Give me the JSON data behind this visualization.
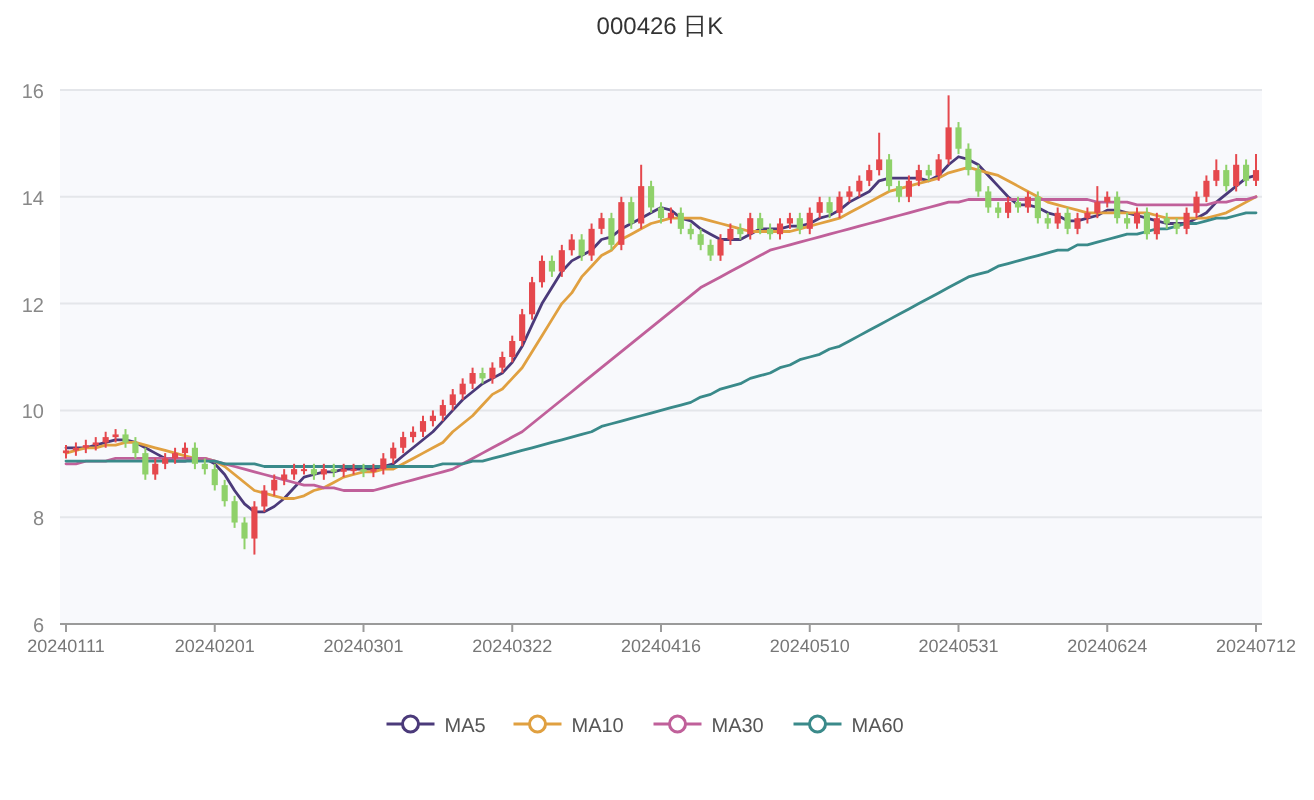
{
  "chart_data": {
    "type": "candlestick",
    "title": "000426 日K",
    "categories": [
      "20240111",
      null,
      null,
      null,
      null,
      null,
      null,
      null,
      null,
      null,
      null,
      null,
      null,
      null,
      null,
      "20240201",
      null,
      null,
      null,
      null,
      null,
      null,
      null,
      null,
      null,
      null,
      null,
      null,
      null,
      null,
      "20240301",
      null,
      null,
      null,
      null,
      null,
      null,
      null,
      null,
      null,
      null,
      null,
      null,
      null,
      null,
      "20240322",
      null,
      null,
      null,
      null,
      null,
      null,
      null,
      null,
      null,
      null,
      null,
      null,
      null,
      null,
      "20240416",
      null,
      null,
      null,
      null,
      null,
      null,
      null,
      null,
      null,
      null,
      null,
      null,
      null,
      null,
      "20240510",
      null,
      null,
      null,
      null,
      null,
      null,
      null,
      null,
      null,
      null,
      null,
      null,
      null,
      null,
      "20240531",
      null,
      null,
      null,
      null,
      null,
      null,
      null,
      null,
      null,
      null,
      null,
      null,
      null,
      null,
      "20240624",
      null,
      null,
      null,
      null,
      null,
      null,
      null,
      null,
      null,
      null,
      null,
      null,
      null,
      null,
      "20240712"
    ],
    "ohlc": [
      [
        9.2,
        9.35,
        9.1,
        9.25
      ],
      [
        9.25,
        9.4,
        9.15,
        9.3
      ],
      [
        9.3,
        9.45,
        9.2,
        9.35
      ],
      [
        9.35,
        9.5,
        9.25,
        9.4
      ],
      [
        9.4,
        9.6,
        9.3,
        9.5
      ],
      [
        9.5,
        9.65,
        9.4,
        9.55
      ],
      [
        9.55,
        9.65,
        9.3,
        9.4
      ],
      [
        9.4,
        9.5,
        9.1,
        9.2
      ],
      [
        9.2,
        9.3,
        8.7,
        8.8
      ],
      [
        8.8,
        9.1,
        8.7,
        9.0
      ],
      [
        9.0,
        9.2,
        8.9,
        9.1
      ],
      [
        9.1,
        9.3,
        9.0,
        9.2
      ],
      [
        9.2,
        9.4,
        9.1,
        9.3
      ],
      [
        9.3,
        9.4,
        8.9,
        9.0
      ],
      [
        9.0,
        9.1,
        8.8,
        8.9
      ],
      [
        8.9,
        9.0,
        8.5,
        8.6
      ],
      [
        8.6,
        8.7,
        8.2,
        8.3
      ],
      [
        8.3,
        8.4,
        7.8,
        7.9
      ],
      [
        7.9,
        8.0,
        7.4,
        7.6
      ],
      [
        7.6,
        8.3,
        7.3,
        8.2
      ],
      [
        8.2,
        8.6,
        8.1,
        8.5
      ],
      [
        8.5,
        8.8,
        8.4,
        8.7
      ],
      [
        8.7,
        8.9,
        8.6,
        8.8
      ],
      [
        8.8,
        9.0,
        8.7,
        8.9
      ],
      [
        8.9,
        9.0,
        8.8,
        8.9
      ],
      [
        8.9,
        9.0,
        8.7,
        8.8
      ],
      [
        8.8,
        9.0,
        8.7,
        8.9
      ],
      [
        8.9,
        9.0,
        8.75,
        8.85
      ],
      [
        8.85,
        9.0,
        8.75,
        8.9
      ],
      [
        8.9,
        9.0,
        8.8,
        8.9
      ],
      [
        8.9,
        9.0,
        8.75,
        8.85
      ],
      [
        8.85,
        9.0,
        8.75,
        8.9
      ],
      [
        8.9,
        9.2,
        8.8,
        9.1
      ],
      [
        9.1,
        9.4,
        9.0,
        9.3
      ],
      [
        9.3,
        9.6,
        9.2,
        9.5
      ],
      [
        9.5,
        9.7,
        9.4,
        9.6
      ],
      [
        9.6,
        9.9,
        9.5,
        9.8
      ],
      [
        9.8,
        10.0,
        9.7,
        9.9
      ],
      [
        9.9,
        10.2,
        9.8,
        10.1
      ],
      [
        10.1,
        10.4,
        10.0,
        10.3
      ],
      [
        10.3,
        10.6,
        10.2,
        10.5
      ],
      [
        10.5,
        10.8,
        10.4,
        10.7
      ],
      [
        10.7,
        10.8,
        10.5,
        10.6
      ],
      [
        10.6,
        10.9,
        10.5,
        10.8
      ],
      [
        10.8,
        11.1,
        10.7,
        11.0
      ],
      [
        11.0,
        11.4,
        10.9,
        11.3
      ],
      [
        11.3,
        11.9,
        11.2,
        11.8
      ],
      [
        11.8,
        12.5,
        11.7,
        12.4
      ],
      [
        12.4,
        12.9,
        12.3,
        12.8
      ],
      [
        12.8,
        12.9,
        12.5,
        12.6
      ],
      [
        12.6,
        13.1,
        12.5,
        13.0
      ],
      [
        13.0,
        13.3,
        12.9,
        13.2
      ],
      [
        13.2,
        13.3,
        12.8,
        12.9
      ],
      [
        12.9,
        13.5,
        12.8,
        13.4
      ],
      [
        13.4,
        13.7,
        13.3,
        13.6
      ],
      [
        13.6,
        13.7,
        13.0,
        13.1
      ],
      [
        13.1,
        14.0,
        13.0,
        13.9
      ],
      [
        13.9,
        14.0,
        13.4,
        13.5
      ],
      [
        13.5,
        14.6,
        13.4,
        14.2
      ],
      [
        14.2,
        14.3,
        13.7,
        13.8
      ],
      [
        13.8,
        13.9,
        13.5,
        13.6
      ],
      [
        13.6,
        13.8,
        13.5,
        13.7
      ],
      [
        13.7,
        13.8,
        13.3,
        13.4
      ],
      [
        13.4,
        13.5,
        13.2,
        13.3
      ],
      [
        13.3,
        13.4,
        13.0,
        13.1
      ],
      [
        13.1,
        13.2,
        12.8,
        12.9
      ],
      [
        12.9,
        13.3,
        12.8,
        13.2
      ],
      [
        13.2,
        13.5,
        13.1,
        13.4
      ],
      [
        13.4,
        13.5,
        13.2,
        13.3
      ],
      [
        13.3,
        13.7,
        13.2,
        13.6
      ],
      [
        13.6,
        13.7,
        13.3,
        13.4
      ],
      [
        13.4,
        13.5,
        13.2,
        13.3
      ],
      [
        13.3,
        13.6,
        13.2,
        13.5
      ],
      [
        13.5,
        13.7,
        13.4,
        13.6
      ],
      [
        13.6,
        13.7,
        13.3,
        13.4
      ],
      [
        13.4,
        13.8,
        13.3,
        13.7
      ],
      [
        13.7,
        14.0,
        13.6,
        13.9
      ],
      [
        13.9,
        14.0,
        13.6,
        13.7
      ],
      [
        13.7,
        14.1,
        13.6,
        14.0
      ],
      [
        14.0,
        14.2,
        13.9,
        14.1
      ],
      [
        14.1,
        14.4,
        14.0,
        14.3
      ],
      [
        14.3,
        14.6,
        14.2,
        14.5
      ],
      [
        14.5,
        15.2,
        14.4,
        14.7
      ],
      [
        14.7,
        14.8,
        14.1,
        14.2
      ],
      [
        14.2,
        14.3,
        13.9,
        14.0
      ],
      [
        14.0,
        14.4,
        13.9,
        14.3
      ],
      [
        14.3,
        14.6,
        14.2,
        14.5
      ],
      [
        14.5,
        14.6,
        14.3,
        14.4
      ],
      [
        14.4,
        14.8,
        14.3,
        14.7
      ],
      [
        14.7,
        15.9,
        14.6,
        15.3
      ],
      [
        15.3,
        15.4,
        14.8,
        14.9
      ],
      [
        14.9,
        15.0,
        14.4,
        14.5
      ],
      [
        14.5,
        14.6,
        14.0,
        14.1
      ],
      [
        14.1,
        14.2,
        13.7,
        13.8
      ],
      [
        13.8,
        13.9,
        13.6,
        13.7
      ],
      [
        13.7,
        14.0,
        13.6,
        13.9
      ],
      [
        13.9,
        14.0,
        13.7,
        13.8
      ],
      [
        13.8,
        14.1,
        13.7,
        14.0
      ],
      [
        14.0,
        14.1,
        13.5,
        13.6
      ],
      [
        13.6,
        13.7,
        13.4,
        13.5
      ],
      [
        13.5,
        13.8,
        13.4,
        13.7
      ],
      [
        13.7,
        13.8,
        13.3,
        13.4
      ],
      [
        13.4,
        13.7,
        13.3,
        13.6
      ],
      [
        13.6,
        13.8,
        13.5,
        13.7
      ],
      [
        13.7,
        14.2,
        13.6,
        13.9
      ],
      [
        13.9,
        14.1,
        13.8,
        14.0
      ],
      [
        14.0,
        14.1,
        13.5,
        13.6
      ],
      [
        13.6,
        13.7,
        13.4,
        13.5
      ],
      [
        13.5,
        13.8,
        13.4,
        13.7
      ],
      [
        13.7,
        13.8,
        13.2,
        13.3
      ],
      [
        13.3,
        13.7,
        13.2,
        13.6
      ],
      [
        13.6,
        13.7,
        13.4,
        13.5
      ],
      [
        13.5,
        13.6,
        13.3,
        13.4
      ],
      [
        13.4,
        13.8,
        13.3,
        13.7
      ],
      [
        13.7,
        14.1,
        13.6,
        14.0
      ],
      [
        14.0,
        14.4,
        13.9,
        14.3
      ],
      [
        14.3,
        14.7,
        14.2,
        14.5
      ],
      [
        14.5,
        14.6,
        14.1,
        14.2
      ],
      [
        14.2,
        14.8,
        14.1,
        14.6
      ],
      [
        14.6,
        14.7,
        14.2,
        14.3
      ],
      [
        14.3,
        14.8,
        14.2,
        14.5
      ]
    ],
    "colors": [
      "#e5484d",
      "#e5484d",
      "#e5484d",
      "#e5484d",
      "#e5484d",
      "#e5484d",
      "#8fd16a",
      "#8fd16a",
      "#8fd16a",
      "#e5484d",
      "#e5484d",
      "#e5484d",
      "#e5484d",
      "#8fd16a",
      "#8fd16a",
      "#8fd16a",
      "#8fd16a",
      "#8fd16a",
      "#8fd16a",
      "#e5484d",
      "#e5484d",
      "#e5484d",
      "#e5484d",
      "#e5484d",
      "#e5484d",
      "#8fd16a",
      "#e5484d",
      "#8fd16a",
      "#e5484d",
      "#e5484d",
      "#8fd16a",
      "#e5484d",
      "#e5484d",
      "#e5484d",
      "#e5484d",
      "#e5484d",
      "#e5484d",
      "#e5484d",
      "#e5484d",
      "#e5484d",
      "#e5484d",
      "#e5484d",
      "#8fd16a",
      "#e5484d",
      "#e5484d",
      "#e5484d",
      "#e5484d",
      "#e5484d",
      "#e5484d",
      "#8fd16a",
      "#e5484d",
      "#e5484d",
      "#8fd16a",
      "#e5484d",
      "#e5484d",
      "#8fd16a",
      "#e5484d",
      "#8fd16a",
      "#e5484d",
      "#8fd16a",
      "#8fd16a",
      "#e5484d",
      "#8fd16a",
      "#8fd16a",
      "#8fd16a",
      "#8fd16a",
      "#e5484d",
      "#e5484d",
      "#8fd16a",
      "#e5484d",
      "#8fd16a",
      "#8fd16a",
      "#e5484d",
      "#e5484d",
      "#8fd16a",
      "#e5484d",
      "#e5484d",
      "#8fd16a",
      "#e5484d",
      "#e5484d",
      "#e5484d",
      "#e5484d",
      "#e5484d",
      "#8fd16a",
      "#8fd16a",
      "#e5484d",
      "#e5484d",
      "#8fd16a",
      "#e5484d",
      "#e5484d",
      "#8fd16a",
      "#8fd16a",
      "#8fd16a",
      "#8fd16a",
      "#8fd16a",
      "#e5484d",
      "#8fd16a",
      "#e5484d",
      "#8fd16a",
      "#8fd16a",
      "#e5484d",
      "#8fd16a",
      "#e5484d",
      "#e5484d",
      "#e5484d",
      "#e5484d",
      "#8fd16a",
      "#8fd16a",
      "#e5484d",
      "#8fd16a",
      "#e5484d",
      "#8fd16a",
      "#8fd16a",
      "#e5484d",
      "#e5484d",
      "#e5484d",
      "#e5484d",
      "#8fd16a",
      "#e5484d",
      "#8fd16a",
      "#e5484d"
    ],
    "series": [
      {
        "name": "MA5",
        "type": "line",
        "color": "#4b3a7a",
        "values": [
          9.3,
          9.3,
          9.3,
          9.35,
          9.4,
          9.45,
          9.45,
          9.4,
          9.3,
          9.2,
          9.1,
          9.05,
          9.05,
          9.1,
          9.1,
          9.0,
          8.8,
          8.5,
          8.25,
          8.1,
          8.1,
          8.2,
          8.35,
          8.55,
          8.75,
          8.8,
          8.85,
          8.85,
          8.9,
          8.9,
          8.9,
          8.9,
          8.95,
          9.0,
          9.15,
          9.3,
          9.45,
          9.6,
          9.8,
          10.0,
          10.2,
          10.35,
          10.5,
          10.6,
          10.7,
          10.9,
          11.2,
          11.6,
          12.0,
          12.3,
          12.6,
          12.8,
          12.9,
          13.0,
          13.2,
          13.25,
          13.4,
          13.5,
          13.6,
          13.7,
          13.8,
          13.75,
          13.6,
          13.55,
          13.4,
          13.3,
          13.2,
          13.2,
          13.2,
          13.3,
          13.4,
          13.4,
          13.4,
          13.45,
          13.45,
          13.5,
          13.6,
          13.65,
          13.75,
          13.9,
          14.0,
          14.1,
          14.3,
          14.35,
          14.35,
          14.35,
          14.35,
          14.3,
          14.4,
          14.6,
          14.75,
          14.7,
          14.6,
          14.4,
          14.2,
          14.0,
          13.85,
          13.85,
          13.8,
          13.7,
          13.65,
          13.55,
          13.55,
          13.6,
          13.65,
          13.75,
          13.75,
          13.7,
          13.65,
          13.6,
          13.55,
          13.5,
          13.5,
          13.5,
          13.6,
          13.7,
          13.9,
          14.05,
          14.2,
          14.35,
          14.4
        ]
      },
      {
        "name": "MA10",
        "type": "line",
        "color": "#e0a040",
        "values": [
          9.2,
          9.25,
          9.3,
          9.3,
          9.35,
          9.35,
          9.4,
          9.4,
          9.35,
          9.3,
          9.25,
          9.2,
          9.15,
          9.1,
          9.1,
          9.05,
          8.95,
          8.8,
          8.65,
          8.5,
          8.45,
          8.4,
          8.35,
          8.35,
          8.4,
          8.5,
          8.55,
          8.65,
          8.75,
          8.8,
          8.85,
          8.85,
          8.9,
          8.9,
          9.0,
          9.1,
          9.2,
          9.3,
          9.4,
          9.6,
          9.75,
          9.9,
          10.1,
          10.3,
          10.4,
          10.6,
          10.8,
          11.1,
          11.4,
          11.7,
          12.0,
          12.2,
          12.5,
          12.7,
          12.9,
          13.0,
          13.2,
          13.3,
          13.4,
          13.5,
          13.55,
          13.6,
          13.6,
          13.6,
          13.6,
          13.55,
          13.5,
          13.45,
          13.4,
          13.35,
          13.35,
          13.35,
          13.35,
          13.35,
          13.4,
          13.45,
          13.5,
          13.55,
          13.6,
          13.7,
          13.8,
          13.9,
          14.0,
          14.1,
          14.15,
          14.2,
          14.25,
          14.3,
          14.35,
          14.45,
          14.5,
          14.55,
          14.5,
          14.45,
          14.4,
          14.3,
          14.2,
          14.1,
          14.0,
          13.9,
          13.85,
          13.8,
          13.75,
          13.7,
          13.7,
          13.7,
          13.7,
          13.7,
          13.7,
          13.7,
          13.65,
          13.6,
          13.6,
          13.6,
          13.6,
          13.6,
          13.65,
          13.7,
          13.8,
          13.9,
          14.0
        ]
      },
      {
        "name": "MA30",
        "type": "line",
        "color": "#c0609a",
        "values": [
          9.0,
          9.0,
          9.05,
          9.05,
          9.05,
          9.1,
          9.1,
          9.1,
          9.1,
          9.1,
          9.1,
          9.1,
          9.1,
          9.1,
          9.1,
          9.05,
          9.0,
          8.95,
          8.9,
          8.85,
          8.8,
          8.75,
          8.7,
          8.65,
          8.6,
          8.6,
          8.55,
          8.55,
          8.5,
          8.5,
          8.5,
          8.5,
          8.55,
          8.6,
          8.65,
          8.7,
          8.75,
          8.8,
          8.85,
          8.9,
          9.0,
          9.1,
          9.2,
          9.3,
          9.4,
          9.5,
          9.6,
          9.75,
          9.9,
          10.05,
          10.2,
          10.35,
          10.5,
          10.65,
          10.8,
          10.95,
          11.1,
          11.25,
          11.4,
          11.55,
          11.7,
          11.85,
          12.0,
          12.15,
          12.3,
          12.4,
          12.5,
          12.6,
          12.7,
          12.8,
          12.9,
          13.0,
          13.05,
          13.1,
          13.15,
          13.2,
          13.25,
          13.3,
          13.35,
          13.4,
          13.45,
          13.5,
          13.55,
          13.6,
          13.65,
          13.7,
          13.75,
          13.8,
          13.85,
          13.9,
          13.9,
          13.95,
          13.95,
          13.95,
          13.95,
          13.95,
          13.95,
          13.95,
          13.95,
          13.95,
          13.95,
          13.95,
          13.95,
          13.95,
          13.9,
          13.9,
          13.9,
          13.9,
          13.85,
          13.85,
          13.85,
          13.85,
          13.85,
          13.85,
          13.85,
          13.85,
          13.9,
          13.9,
          13.95,
          13.95,
          14.0
        ]
      },
      {
        "name": "MA60",
        "type": "line",
        "color": "#3a8a8a",
        "values": [
          9.05,
          9.05,
          9.05,
          9.05,
          9.05,
          9.05,
          9.05,
          9.05,
          9.05,
          9.05,
          9.05,
          9.05,
          9.05,
          9.05,
          9.05,
          9.05,
          9.0,
          9.0,
          9.0,
          9.0,
          8.95,
          8.95,
          8.95,
          8.95,
          8.95,
          8.95,
          8.95,
          8.95,
          8.95,
          8.95,
          8.95,
          8.95,
          8.95,
          8.95,
          8.95,
          8.95,
          8.95,
          8.95,
          9.0,
          9.0,
          9.0,
          9.05,
          9.05,
          9.1,
          9.15,
          9.2,
          9.25,
          9.3,
          9.35,
          9.4,
          9.45,
          9.5,
          9.55,
          9.6,
          9.7,
          9.75,
          9.8,
          9.85,
          9.9,
          9.95,
          10.0,
          10.05,
          10.1,
          10.15,
          10.25,
          10.3,
          10.4,
          10.45,
          10.5,
          10.6,
          10.65,
          10.7,
          10.8,
          10.85,
          10.95,
          11.0,
          11.05,
          11.15,
          11.2,
          11.3,
          11.4,
          11.5,
          11.6,
          11.7,
          11.8,
          11.9,
          12.0,
          12.1,
          12.2,
          12.3,
          12.4,
          12.5,
          12.55,
          12.6,
          12.7,
          12.75,
          12.8,
          12.85,
          12.9,
          12.95,
          13.0,
          13.0,
          13.1,
          13.1,
          13.15,
          13.2,
          13.25,
          13.3,
          13.3,
          13.35,
          13.4,
          13.4,
          13.45,
          13.5,
          13.5,
          13.55,
          13.6,
          13.6,
          13.65,
          13.7,
          13.7
        ]
      }
    ],
    "ylim": [
      6,
      16
    ],
    "yticks": [
      6,
      8,
      10,
      12,
      14,
      16
    ],
    "grid": "y",
    "legend": "bottom"
  }
}
